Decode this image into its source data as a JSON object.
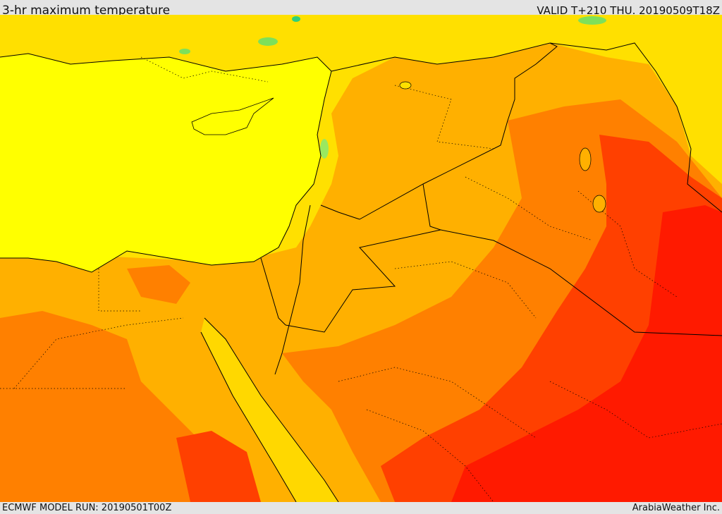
{
  "header": {
    "title": "3-hr maximum temperature",
    "valid": "VALID T+210 THU. 20190509T18Z"
  },
  "footer": {
    "model_run": "ECMWF MODEL RUN: 20190501T00Z",
    "credit": "ArabiaWeather Inc."
  },
  "map": {
    "colors": {
      "sea": "#ffff00",
      "band_cool": "#ffe000",
      "band_warm": "#ffb000",
      "band_hot": "#ff8000",
      "band_very_hot": "#ff4000",
      "band_extreme": "#ff1a00",
      "band_green": "#7ee05a",
      "border": "#000000"
    }
  }
}
